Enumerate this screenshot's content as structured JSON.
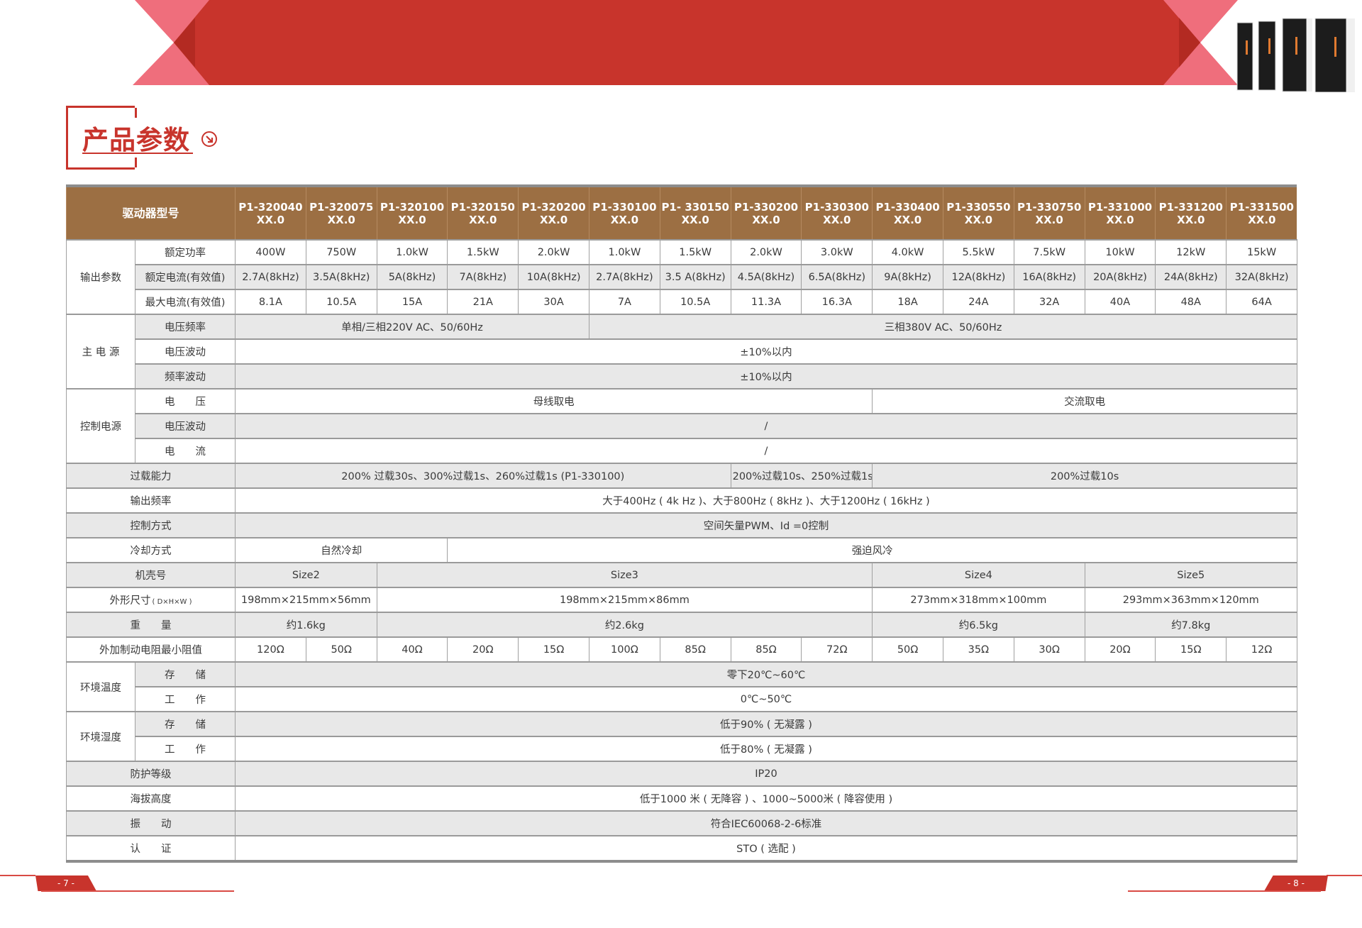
{
  "colors": {
    "brand_red": "#c8342c",
    "banner_pink": "#ef6e7c",
    "header_brown": "#9c6f43",
    "row_gray": "#e8e8e8"
  },
  "title": {
    "text": "产品参数",
    "icon": "circle-arrow-down-right-icon"
  },
  "table": {
    "header": {
      "label": "驱动器型号",
      "models": [
        {
          "line1": "P1-320040",
          "line2": "XX.0"
        },
        {
          "line1": "P1-320075",
          "line2": "XX.0"
        },
        {
          "line1": "P1-320100",
          "line2": "XX.0"
        },
        {
          "line1": "P1-320150",
          "line2": "XX.0"
        },
        {
          "line1": "P1-320200",
          "line2": "XX.0"
        },
        {
          "line1": "P1-330100",
          "line2": "XX.0"
        },
        {
          "line1": "P1- 330150",
          "line2": "XX.0"
        },
        {
          "line1": "P1-330200",
          "line2": "XX.0"
        },
        {
          "line1": "P1-330300",
          "line2": "XX.0"
        },
        {
          "line1": "P1-330400",
          "line2": "XX.0"
        },
        {
          "line1": "P1-330550",
          "line2": "XX.0"
        },
        {
          "line1": "P1-330750",
          "line2": "XX.0"
        },
        {
          "line1": "P1-331000",
          "line2": "XX.0"
        },
        {
          "line1": "P1-331200",
          "line2": "XX.0"
        },
        {
          "line1": "P1-331500",
          "line2": "XX.0"
        }
      ]
    },
    "sections": [
      {
        "group": "输出参数",
        "rows": [
          {
            "label": "额定功率",
            "values": [
              "400W",
              "750W",
              "1.0kW",
              "1.5kW",
              "2.0kW",
              "1.0kW",
              "1.5kW",
              "2.0kW",
              "3.0kW",
              "4.0kW",
              "5.5kW",
              "7.5kW",
              "10kW",
              "12kW",
              "15kW"
            ]
          },
          {
            "label": "额定电流(有效值)",
            "values": [
              "2.7A(8kHz)",
              "3.5A(8kHz)",
              "5A(8kHz)",
              "7A(8kHz)",
              "10A(8kHz)",
              "2.7A(8kHz)",
              "3.5 A(8kHz)",
              "4.5A(8kHz)",
              "6.5A(8kHz)",
              "9A(8kHz)",
              "12A(8kHz)",
              "16A(8kHz)",
              "20A(8kHz)",
              "24A(8kHz)",
              "32A(8kHz)"
            ]
          },
          {
            "label": "最大电流(有效值)",
            "values": [
              "8.1A",
              "10.5A",
              "15A",
              "21A",
              "30A",
              "7A",
              "10.5A",
              "11.3A",
              "16.3A",
              "18A",
              "24A",
              "32A",
              "40A",
              "48A",
              "64A"
            ]
          }
        ]
      },
      {
        "group": "主 电 源",
        "rows": [
          {
            "label": "电压频率",
            "values": [
              "单相/三相220V AC、50/60Hz",
              "三相380V AC、50/60Hz"
            ]
          },
          {
            "label": "电压波动",
            "values": [
              "±10%以内"
            ]
          },
          {
            "label": "频率波动",
            "values": [
              "±10%以内"
            ]
          }
        ]
      },
      {
        "group": "控制电源",
        "rows": [
          {
            "label": "电　　压",
            "values": [
              "母线取电",
              "交流取电"
            ]
          },
          {
            "label": "电压波动",
            "values": [
              "/"
            ]
          },
          {
            "label": "电　　流",
            "values": [
              "/"
            ]
          }
        ]
      },
      {
        "label": "过载能力",
        "values": [
          "200% 过载30s、300%过载1s、260%过载1s (P1-330100)",
          "200%过载10s、250%过载1s",
          "200%过载10s"
        ]
      },
      {
        "label": "输出频率",
        "values": [
          "大于400Hz ( 4k Hz )、大于800Hz ( 8kHz )、大于1200Hz ( 16kHz )"
        ]
      },
      {
        "label": "控制方式",
        "values": [
          "空间矢量PWM、Id =0控制"
        ]
      },
      {
        "label": "冷却方式",
        "values": [
          "自然冷却",
          "强迫风冷"
        ]
      },
      {
        "label": "机壳号",
        "values": [
          "Size2",
          "Size3",
          "Size4",
          "Size5"
        ]
      },
      {
        "label": "外形尺寸",
        "label_note": "( D×H×W )",
        "values": [
          "198mm×215mm×56mm",
          "198mm×215mm×86mm",
          "273mm×318mm×100mm",
          "293mm×363mm×120mm"
        ]
      },
      {
        "label": "重　　量",
        "values": [
          "约1.6kg",
          "约2.6kg",
          "约6.5kg",
          "约7.8kg"
        ]
      },
      {
        "label": "外加制动电阻最小阻值",
        "values": [
          "120Ω",
          "50Ω",
          "40Ω",
          "20Ω",
          "15Ω",
          "100Ω",
          "85Ω",
          "85Ω",
          "72Ω",
          "50Ω",
          "35Ω",
          "30Ω",
          "20Ω",
          "15Ω",
          "12Ω"
        ]
      },
      {
        "group": "环境温度",
        "rows": [
          {
            "label": "存　　储",
            "values": [
              "零下20℃~60℃"
            ]
          },
          {
            "label": "工　　作",
            "values": [
              "0℃~50℃"
            ]
          }
        ]
      },
      {
        "group": "环境湿度",
        "rows": [
          {
            "label": "存　　储",
            "values": [
              "低于90% ( 无凝露 )"
            ]
          },
          {
            "label": "工　　作",
            "values": [
              "低于80% ( 无凝露 )"
            ]
          }
        ]
      },
      {
        "label": "防护等级",
        "values": [
          "IP20"
        ]
      },
      {
        "label": "海拔高度",
        "values": [
          "低于1000 米 ( 无降容 ) 、1000~5000米 ( 降容使用 )"
        ]
      },
      {
        "label": "振　　动",
        "values": [
          "符合IEC60068-2-6标准"
        ]
      },
      {
        "label": "认　　证",
        "values": [
          "STO ( 选配 )"
        ]
      }
    ]
  },
  "footer": {
    "left_page": "- 7 -",
    "right_page": "- 8 -"
  }
}
